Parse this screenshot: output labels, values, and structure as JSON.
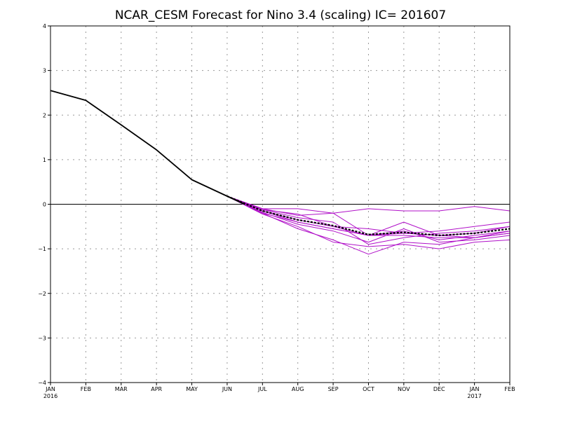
{
  "chart_data": {
    "type": "line",
    "title": "NCAR_CESM Forecast for Nino 3.4 (scaling)  IC= 201607",
    "xlabel": "",
    "ylabel": "",
    "ylim": [
      -4,
      4
    ],
    "yticks": [
      "4",
      "3",
      "2",
      "1",
      "0",
      "−1",
      "−2",
      "−3",
      "−4"
    ],
    "months": [
      "JAN",
      "FEB",
      "MAR",
      "APR",
      "MAY",
      "JUN",
      "JUL",
      "AUG",
      "SEP",
      "OCT",
      "NOV",
      "DEC",
      "JAN",
      "FEB"
    ],
    "year_labels": [
      {
        "index": 0,
        "text": "2016"
      },
      {
        "index": 12,
        "text": "2017"
      }
    ],
    "grid": true,
    "colors": {
      "observed": "#000000",
      "members": "#b010c8",
      "mean": "#000000",
      "zero_line": "#000000",
      "grid": "#999999"
    },
    "observed": {
      "x": [
        0,
        1,
        2,
        3,
        4,
        5,
        5.5
      ],
      "y": [
        2.55,
        2.33,
        1.78,
        1.22,
        0.55,
        0.18,
        0.0
      ]
    },
    "members": [
      {
        "x": [
          5,
          6,
          7,
          8,
          9,
          10,
          11,
          12,
          13
        ],
        "y": [
          0.18,
          -0.1,
          -0.1,
          -0.2,
          -0.1,
          -0.15,
          -0.15,
          -0.05,
          -0.15
        ]
      },
      {
        "x": [
          5,
          6,
          7,
          8,
          9,
          10,
          11,
          12,
          13
        ],
        "y": [
          0.18,
          -0.12,
          -0.22,
          -0.5,
          -0.55,
          -0.65,
          -0.6,
          -0.5,
          -0.4
        ]
      },
      {
        "x": [
          5,
          6,
          7,
          8,
          9,
          10,
          11,
          12,
          13
        ],
        "y": [
          0.18,
          -0.1,
          -0.25,
          -0.2,
          -0.7,
          -0.4,
          -0.7,
          -0.65,
          -0.5
        ]
      },
      {
        "x": [
          5,
          6,
          7,
          8,
          9,
          10,
          11,
          12,
          13
        ],
        "y": [
          0.18,
          -0.12,
          -0.3,
          -0.4,
          -0.9,
          -0.75,
          -0.65,
          -0.6,
          -0.5
        ]
      },
      {
        "x": [
          5,
          6,
          7,
          8,
          9,
          10,
          11,
          12,
          13
        ],
        "y": [
          0.18,
          -0.15,
          -0.35,
          -0.5,
          -0.7,
          -0.6,
          -0.8,
          -0.7,
          -0.6
        ]
      },
      {
        "x": [
          5,
          6,
          7,
          8,
          9,
          10,
          11,
          12,
          13
        ],
        "y": [
          0.18,
          -0.15,
          -0.4,
          -0.55,
          -0.7,
          -0.7,
          -0.75,
          -0.75,
          -0.65
        ]
      },
      {
        "x": [
          5,
          6,
          7,
          8,
          9,
          10,
          11,
          12,
          13
        ],
        "y": [
          0.18,
          -0.18,
          -0.45,
          -0.6,
          -0.85,
          -0.55,
          -0.85,
          -0.8,
          -0.7
        ]
      },
      {
        "x": [
          5,
          6,
          7,
          8,
          9,
          10,
          11,
          12,
          13
        ],
        "y": [
          0.18,
          -0.2,
          -0.55,
          -0.8,
          -1.12,
          -0.85,
          -0.9,
          -0.75,
          -0.6
        ]
      },
      {
        "x": [
          5,
          6,
          7,
          8,
          9,
          10,
          11,
          12,
          13
        ],
        "y": [
          0.18,
          -0.22,
          -0.5,
          -0.85,
          -0.95,
          -0.9,
          -1.0,
          -0.85,
          -0.8
        ]
      },
      {
        "x": [
          5,
          6,
          7,
          8,
          9,
          10,
          11,
          12,
          13
        ],
        "y": [
          0.18,
          -0.2,
          -0.4,
          -0.55,
          -0.7,
          -0.65,
          -0.7,
          -0.75,
          -0.65
        ]
      }
    ],
    "ensemble_mean": {
      "x": [
        5,
        6,
        7,
        8,
        9,
        10,
        11,
        12,
        13
      ],
      "y": [
        0.18,
        -0.15,
        -0.35,
        -0.48,
        -0.68,
        -0.63,
        -0.7,
        -0.65,
        -0.55
      ]
    }
  }
}
